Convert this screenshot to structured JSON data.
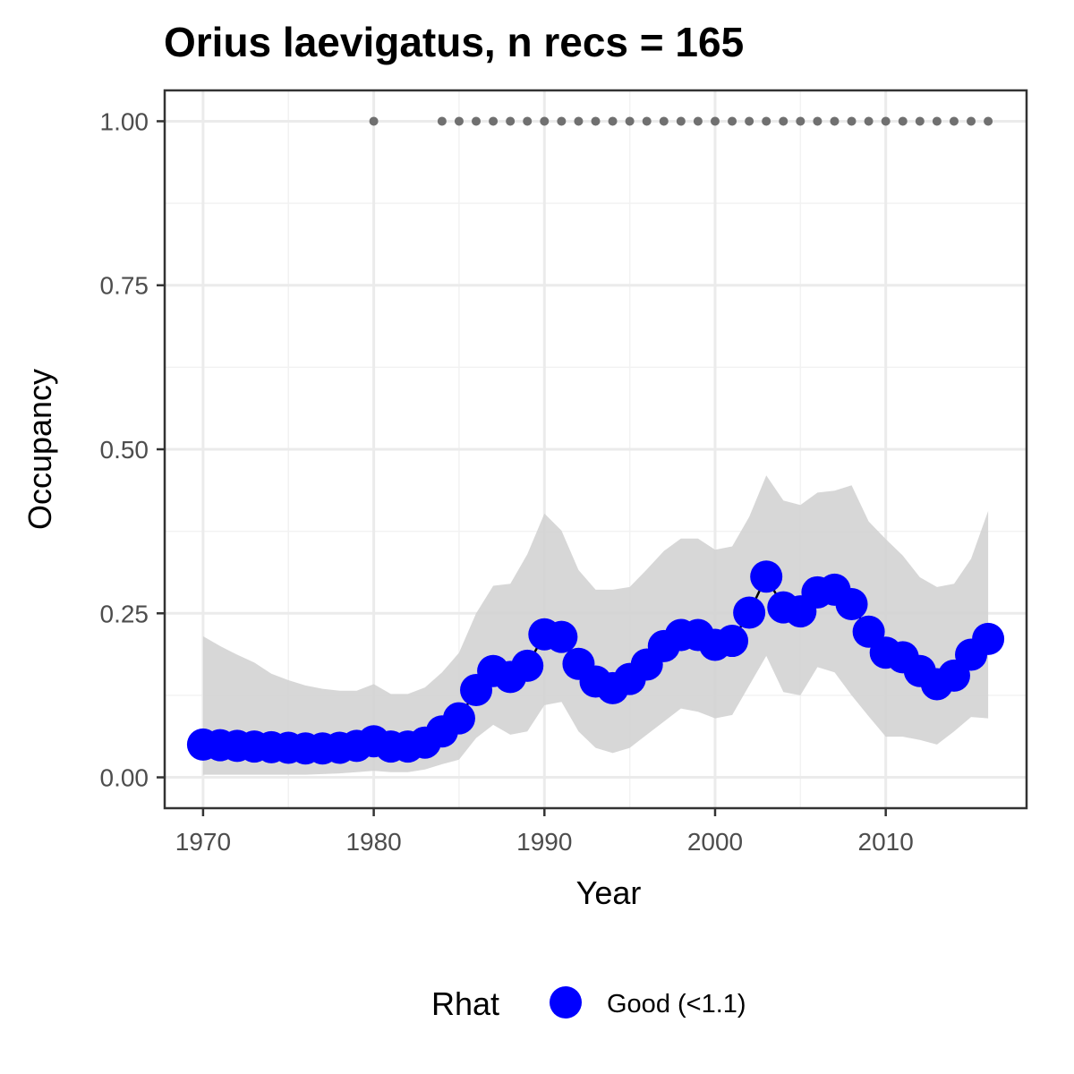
{
  "chart_data": {
    "type": "line",
    "title": "Orius laevigatus, n recs = 165",
    "xlabel": "Year",
    "ylabel": "Occupancy",
    "xlim": [
      1967.75,
      2018.25
    ],
    "ylim": [
      -0.047,
      1.047
    ],
    "x_ticks": [
      1970,
      1980,
      1990,
      2000,
      2010
    ],
    "x_tick_labels": [
      "1970",
      "1980",
      "1990",
      "2000",
      "2010"
    ],
    "y_ticks": [
      0,
      0.25,
      0.5,
      0.75,
      1
    ],
    "y_tick_labels": [
      "0.00",
      "0.25",
      "0.50",
      "0.75",
      "1.00"
    ],
    "grid": true,
    "legend": {
      "position": "bottom",
      "title": "Rhat",
      "entries": [
        {
          "label": "Good (<1.1)",
          "color": "#0000ff"
        }
      ]
    },
    "colors": {
      "points": "#0000ff",
      "band": "#d3d3d3",
      "record_dots": "#707070"
    },
    "x": [
      1970,
      1971,
      1972,
      1973,
      1974,
      1975,
      1976,
      1977,
      1978,
      1979,
      1980,
      1981,
      1982,
      1983,
      1984,
      1985,
      1986,
      1987,
      1988,
      1989,
      1990,
      1991,
      1992,
      1993,
      1994,
      1995,
      1996,
      1997,
      1998,
      1999,
      2000,
      2001,
      2002,
      2003,
      2004,
      2005,
      2006,
      2007,
      2008,
      2009,
      2010,
      2011,
      2012,
      2013,
      2014,
      2015,
      2016
    ],
    "series": [
      {
        "values": [
          0.05,
          0.049,
          0.048,
          0.047,
          0.046,
          0.045,
          0.044,
          0.044,
          0.045,
          0.048,
          0.055,
          0.047,
          0.047,
          0.053,
          0.07,
          0.09,
          0.133,
          0.162,
          0.153,
          0.17,
          0.218,
          0.214,
          0.173,
          0.146,
          0.136,
          0.15,
          0.172,
          0.2,
          0.217,
          0.217,
          0.202,
          0.208,
          0.251,
          0.306,
          0.259,
          0.253,
          0.282,
          0.286,
          0.264,
          0.222,
          0.19,
          0.183,
          0.162,
          0.142,
          0.155,
          0.187,
          0.211
        ],
        "lower": [
          0.004,
          0.004,
          0.004,
          0.004,
          0.004,
          0.004,
          0.004,
          0.005,
          0.006,
          0.008,
          0.01,
          0.008,
          0.008,
          0.012,
          0.02,
          0.027,
          0.06,
          0.08,
          0.065,
          0.07,
          0.11,
          0.115,
          0.07,
          0.045,
          0.037,
          0.045,
          0.065,
          0.085,
          0.105,
          0.1,
          0.09,
          0.095,
          0.14,
          0.185,
          0.13,
          0.125,
          0.168,
          0.16,
          0.125,
          0.093,
          0.062,
          0.062,
          0.057,
          0.05,
          0.07,
          0.092,
          0.09
        ],
        "upper": [
          0.215,
          0.2,
          0.187,
          0.175,
          0.158,
          0.148,
          0.14,
          0.135,
          0.132,
          0.132,
          0.142,
          0.127,
          0.127,
          0.137,
          0.16,
          0.19,
          0.25,
          0.292,
          0.295,
          0.34,
          0.402,
          0.376,
          0.316,
          0.286,
          0.286,
          0.29,
          0.317,
          0.345,
          0.364,
          0.364,
          0.347,
          0.352,
          0.397,
          0.46,
          0.422,
          0.415,
          0.434,
          0.437,
          0.445,
          0.39,
          0.363,
          0.338,
          0.305,
          0.29,
          0.295,
          0.333,
          0.406
        ]
      }
    ],
    "record_years": [
      1980,
      1984,
      1985,
      1986,
      1987,
      1988,
      1989,
      1990,
      1991,
      1992,
      1993,
      1994,
      1995,
      1996,
      1997,
      1998,
      1999,
      2000,
      2001,
      2002,
      2003,
      2004,
      2005,
      2006,
      2007,
      2008,
      2009,
      2010,
      2011,
      2012,
      2013,
      2014,
      2015,
      2016
    ],
    "record_value": 1
  }
}
